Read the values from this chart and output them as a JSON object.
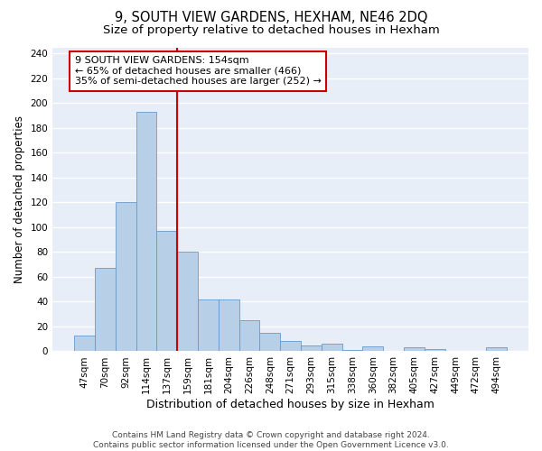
{
  "title": "9, SOUTH VIEW GARDENS, HEXHAM, NE46 2DQ",
  "subtitle": "Size of property relative to detached houses in Hexham",
  "xlabel": "Distribution of detached houses by size in Hexham",
  "ylabel": "Number of detached properties",
  "categories": [
    "47sqm",
    "70sqm",
    "92sqm",
    "114sqm",
    "137sqm",
    "159sqm",
    "181sqm",
    "204sqm",
    "226sqm",
    "248sqm",
    "271sqm",
    "293sqm",
    "315sqm",
    "338sqm",
    "360sqm",
    "382sqm",
    "405sqm",
    "427sqm",
    "449sqm",
    "472sqm",
    "494sqm"
  ],
  "values": [
    13,
    67,
    120,
    193,
    97,
    80,
    42,
    42,
    25,
    15,
    8,
    5,
    6,
    1,
    4,
    0,
    3,
    2,
    0,
    0,
    3
  ],
  "bar_color": "#b8cfe8",
  "bar_edge_color": "#6699cc",
  "vline_x": 4.5,
  "annotation_line1": "9 SOUTH VIEW GARDENS: 154sqm",
  "annotation_line2": "← 65% of detached houses are smaller (466)",
  "annotation_line3": "35% of semi-detached houses are larger (252) →",
  "annotation_box_color": "#ffffff",
  "annotation_box_edgecolor": "#cc0000",
  "vline_color": "#cc0000",
  "ylim": [
    0,
    245
  ],
  "yticks": [
    0,
    20,
    40,
    60,
    80,
    100,
    120,
    140,
    160,
    180,
    200,
    220,
    240
  ],
  "background_color": "#e8eef8",
  "grid_color": "#ffffff",
  "footer": "Contains HM Land Registry data © Crown copyright and database right 2024.\nContains public sector information licensed under the Open Government Licence v3.0.",
  "title_fontsize": 10.5,
  "subtitle_fontsize": 9.5,
  "xlabel_fontsize": 9,
  "ylabel_fontsize": 8.5,
  "tick_fontsize": 7.5,
  "annotation_fontsize": 8,
  "footer_fontsize": 6.5
}
